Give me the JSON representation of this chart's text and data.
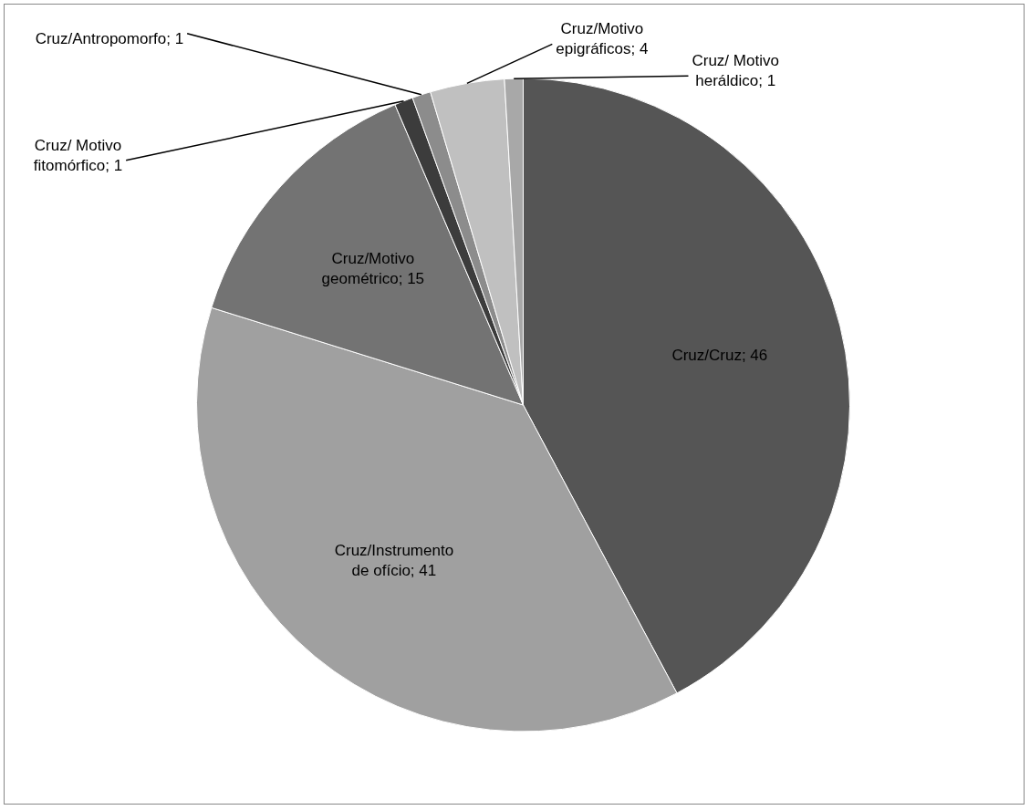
{
  "chart_data": {
    "type": "pie",
    "categories": [
      "Cruz/Cruz",
      "Cruz/Instrumento de ofício",
      "Cruz/Motivo geométrico",
      "Cruz/ Motivo fitomórfico",
      "Cruz/Antropomorfo",
      "Cruz/Motivo epigráficos",
      "Cruz/ Motivo heráldico"
    ],
    "values": [
      46,
      41,
      15,
      1,
      1,
      4,
      1
    ],
    "colors": [
      "#555555",
      "#a0a0a0",
      "#737373",
      "#3c3c3c",
      "#8c8c8c",
      "#c0c0c0",
      "#a8a8a8"
    ],
    "value_labels": [
      "; 46",
      "; 41",
      "; 15",
      "; 1",
      "; 1",
      "; 4",
      "; 1"
    ],
    "legend": false
  }
}
